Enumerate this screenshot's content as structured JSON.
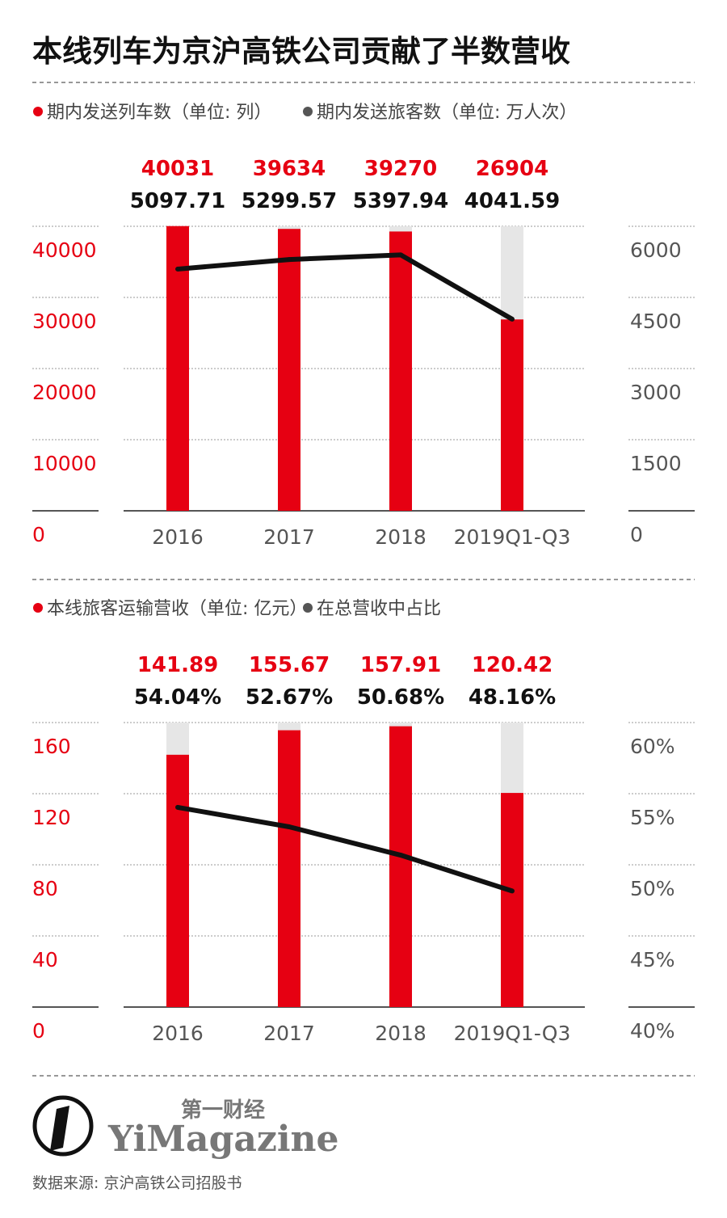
{
  "title": "本线列车为京沪高铁公司贡献了半数营收",
  "colors": {
    "bar": "#e60012",
    "bar_background": "#e6e6e6",
    "line": "#111111"
  },
  "chart_data": [
    {
      "type": "bar+line",
      "legend": [
        "期内发送列车数（单位: 列）",
        "期内发送旅客数（单位: 万人次）"
      ],
      "categories": [
        "2016",
        "2017",
        "2018",
        "2019Q1-Q3"
      ],
      "series": [
        {
          "name": "期内发送列车数（单位: 列）",
          "type": "bar",
          "axis": "left",
          "values": [
            40031,
            39634,
            39270,
            26904
          ],
          "labels": [
            "40031",
            "39634",
            "39270",
            "26904"
          ]
        },
        {
          "name": "期内发送旅客数（单位: 万人次）",
          "type": "line",
          "axis": "right",
          "values": [
            5097.71,
            5299.57,
            5397.94,
            4041.59
          ],
          "labels": [
            "5097.71",
            "5299.57",
            "5397.94",
            "4041.59"
          ]
        }
      ],
      "left_axis": {
        "ylim": [
          0,
          40000
        ],
        "ticks": [
          "0",
          "10000",
          "20000",
          "30000",
          "40000"
        ]
      },
      "right_axis": {
        "ylim": [
          0,
          6000
        ],
        "ticks": [
          "0",
          "1500",
          "3000",
          "4500",
          "6000"
        ]
      },
      "grid": true
    },
    {
      "type": "bar+line",
      "legend": [
        "本线旅客运输营收（单位: 亿元）",
        "在总营收中占比"
      ],
      "categories": [
        "2016",
        "2017",
        "2018",
        "2019Q1-Q3"
      ],
      "series": [
        {
          "name": "本线旅客运输营收（单位: 亿元）",
          "type": "bar",
          "axis": "left",
          "values": [
            141.89,
            155.67,
            157.91,
            120.42
          ],
          "labels": [
            "141.89",
            "155.67",
            "157.91",
            "120.42"
          ]
        },
        {
          "name": "在总营收中占比",
          "type": "line",
          "axis": "right",
          "values": [
            54.04,
            52.67,
            50.68,
            48.16
          ],
          "labels": [
            "54.04%",
            "52.67%",
            "50.68%",
            "48.16%"
          ]
        }
      ],
      "left_axis": {
        "ylim": [
          0,
          160
        ],
        "ticks": [
          "0",
          "40",
          "80",
          "120",
          "160"
        ]
      },
      "right_axis": {
        "ylim": [
          40,
          60
        ],
        "ticks": [
          "40%",
          "45%",
          "50%",
          "55%",
          "60%"
        ]
      },
      "grid": true
    }
  ],
  "logo": {
    "cn": "第一财经",
    "en": "YiMagazine"
  },
  "source": "数据来源: 京沪高铁公司招股书"
}
